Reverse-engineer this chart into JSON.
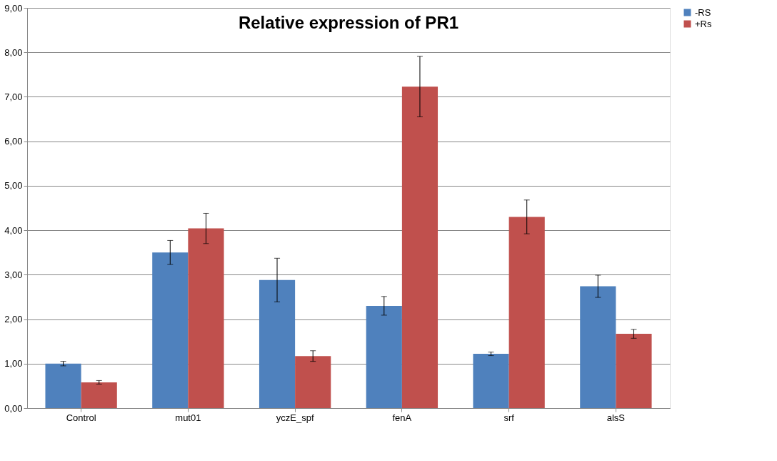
{
  "chart_data": {
    "type": "bar",
    "title": "Relative expression of PR1",
    "categories": [
      "Control",
      "mut01",
      "yczE_spf",
      "fenA",
      "srf",
      "alsS"
    ],
    "series": [
      {
        "name": "-RS",
        "color": "#4f81bd",
        "values": [
          1.0,
          3.5,
          2.88,
          2.3,
          1.22,
          2.74
        ],
        "errors": [
          0.05,
          0.27,
          0.49,
          0.21,
          0.04,
          0.25
        ]
      },
      {
        "name": "+Rs",
        "color": "#c0504d",
        "values": [
          0.58,
          4.04,
          1.17,
          7.23,
          4.3,
          1.67
        ],
        "errors": [
          0.04,
          0.34,
          0.12,
          0.68,
          0.38,
          0.1
        ]
      }
    ],
    "ylim": [
      0,
      9
    ],
    "yticks": [
      {
        "value": 0,
        "label": "0,00"
      },
      {
        "value": 1,
        "label": "1,00"
      },
      {
        "value": 2,
        "label": "2,00"
      },
      {
        "value": 3,
        "label": "3,00"
      },
      {
        "value": 4,
        "label": "4,00"
      },
      {
        "value": 5,
        "label": "5,00"
      },
      {
        "value": 6,
        "label": "6,00"
      },
      {
        "value": 7,
        "label": "7,00"
      },
      {
        "value": 8,
        "label": "8,00"
      },
      {
        "value": 9,
        "label": "9,00"
      }
    ],
    "grid": "y",
    "legend": "right"
  }
}
